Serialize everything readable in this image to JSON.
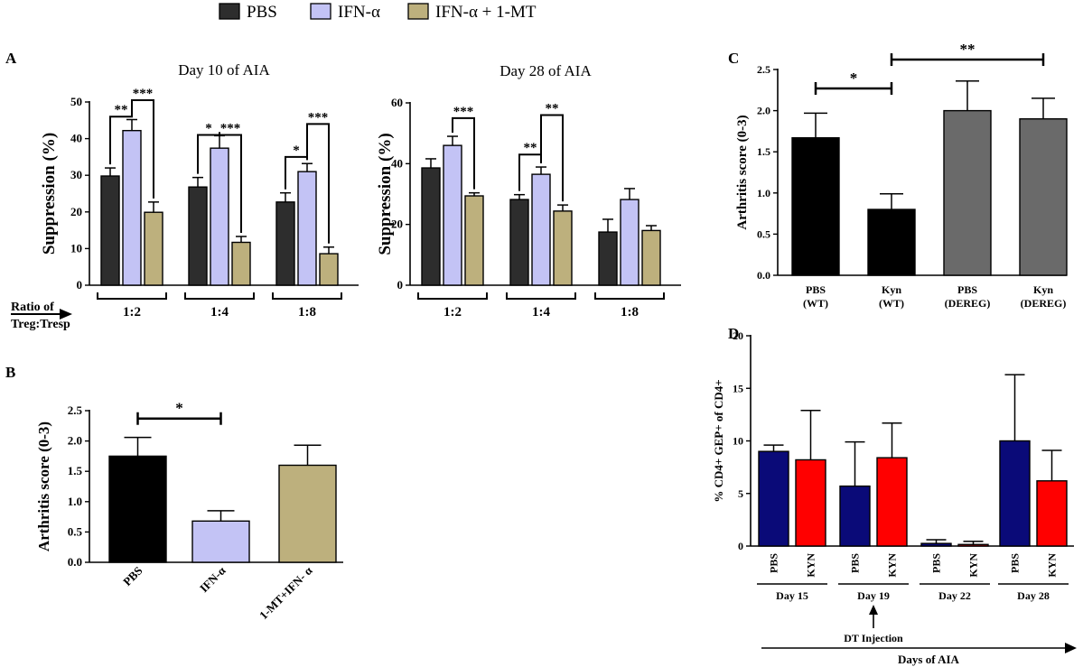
{
  "colors": {
    "pbs": "#2d2d2d",
    "ifn": "#c3c3f5",
    "ifn_1mt": "#bdb07d",
    "black": "#000000",
    "gray": "#6a6a6a",
    "navy": "#0a0a78",
    "red": "#ff0000"
  },
  "legend": {
    "items": [
      {
        "label": "PBS",
        "color": "pbs"
      },
      {
        "label": "IFN-α",
        "color": "ifn"
      },
      {
        "label": "IFN-α + 1-MT",
        "color": "ifn_1mt"
      }
    ]
  },
  "panels": {
    "A": "A",
    "B": "B",
    "C": "C",
    "D": "D"
  },
  "ratio_label": {
    "line1": "Ratio of",
    "line2": "Treg:Tresp"
  },
  "chart_data": [
    {
      "id": "A1",
      "type": "bar",
      "title": "Day 10 of AIA",
      "ylabel": "Suppression (%)",
      "xlabel": "",
      "ylim": [
        0,
        50
      ],
      "yticks": [
        0,
        10,
        20,
        30,
        40,
        50
      ],
      "groups": [
        "1:2",
        "1:4",
        "1:8"
      ],
      "series": [
        {
          "name": "PBS",
          "color": "pbs",
          "values": [
            29.8,
            26.8,
            22.7
          ],
          "errors": [
            2.2,
            2.6,
            2.5
          ]
        },
        {
          "name": "IFN-α",
          "color": "ifn",
          "values": [
            42.2,
            37.4,
            31.0
          ],
          "errors": [
            3.0,
            3.4,
            2.2
          ]
        },
        {
          "name": "IFN-α + 1-MT",
          "color": "ifn_1mt",
          "values": [
            19.9,
            11.7,
            8.6
          ],
          "errors": [
            2.8,
            1.6,
            1.8
          ]
        }
      ],
      "significance": [
        {
          "group": 0,
          "from": 0,
          "to": 1,
          "label": "**",
          "y": 46
        },
        {
          "group": 0,
          "from": 1,
          "to": 2,
          "label": "***",
          "y": 50.5
        },
        {
          "group": 1,
          "from": 0,
          "to": 1,
          "label": "*",
          "y": 41
        },
        {
          "group": 1,
          "from": 1,
          "to": 2,
          "label": "***",
          "y": 41
        },
        {
          "group": 2,
          "from": 0,
          "to": 1,
          "label": "*",
          "y": 35
        },
        {
          "group": 2,
          "from": 1,
          "to": 2,
          "label": "***",
          "y": 44
        }
      ]
    },
    {
      "id": "A2",
      "type": "bar",
      "title": "Day 28 of AIA",
      "ylabel": "Suppression (%)",
      "xlabel": "",
      "ylim": [
        0,
        60
      ],
      "yticks": [
        0,
        20,
        40,
        60
      ],
      "groups": [
        "1:2",
        "1:4",
        "1:8"
      ],
      "series": [
        {
          "name": "PBS",
          "color": "pbs",
          "values": [
            38.6,
            28.2,
            17.5
          ],
          "errors": [
            3.0,
            1.6,
            4.2
          ]
        },
        {
          "name": "IFN-α",
          "color": "ifn",
          "values": [
            46.0,
            36.5,
            28.2
          ],
          "errors": [
            3.0,
            2.4,
            3.6
          ]
        },
        {
          "name": "IFN-α + 1-MT",
          "color": "ifn_1mt",
          "values": [
            29.4,
            24.4,
            18.0
          ],
          "errors": [
            1.0,
            2.0,
            1.6
          ]
        }
      ],
      "significance": [
        {
          "group": 0,
          "from": 1,
          "to": 2,
          "label": "***",
          "y": 55
        },
        {
          "group": 1,
          "from": 0,
          "to": 1,
          "label": "**",
          "y": 43
        },
        {
          "group": 1,
          "from": 1,
          "to": 2,
          "label": "**",
          "y": 56
        }
      ]
    },
    {
      "id": "B",
      "type": "bar",
      "title": "",
      "ylabel": "Arthritis score (0-3)",
      "xlabel": "",
      "ylim": [
        0,
        2.5
      ],
      "yticks": [
        0.0,
        0.5,
        1.0,
        1.5,
        2.0,
        2.5
      ],
      "ytick_labels": [
        "0.0",
        "0.5",
        "1.0",
        "1.5",
        "2.0",
        "2.5"
      ],
      "categories": [
        "PBS",
        "IFN-α",
        "1-MT+IFN- α"
      ],
      "values": [
        1.75,
        0.68,
        1.6
      ],
      "errors": [
        0.31,
        0.17,
        0.33
      ],
      "colors": [
        "black",
        "ifn",
        "ifn_1mt"
      ],
      "significance": [
        {
          "from": 0,
          "to": 1,
          "label": "*",
          "y": 2.37
        }
      ]
    },
    {
      "id": "C",
      "type": "bar",
      "title": "",
      "ylabel": "Arthritis score (0-3)",
      "xlabel": "",
      "ylim": [
        0,
        2.5
      ],
      "yticks": [
        0.0,
        0.5,
        1.0,
        1.5,
        2.0,
        2.5
      ],
      "ytick_labels": [
        "0.0",
        "0.5",
        "1.0",
        "1.5",
        "2.0",
        "2.5"
      ],
      "categories": [
        "PBS\n(WT)",
        "Kyn\n(WT)",
        "PBS\n(DEREG)",
        "Kyn\n(DEREG)"
      ],
      "values": [
        1.67,
        0.8,
        2.0,
        1.9
      ],
      "errors": [
        0.3,
        0.19,
        0.36,
        0.25
      ],
      "colors": [
        "black",
        "black",
        "gray",
        "gray"
      ],
      "significance": [
        {
          "from": 0,
          "to": 1,
          "label": "*",
          "y": 2.27
        },
        {
          "from": 1,
          "to": 3,
          "label": "**",
          "y": 2.62
        }
      ]
    },
    {
      "id": "D",
      "type": "bar",
      "title": "",
      "ylabel": "% CD4+ GEP+ of CD4+",
      "xlabel": "Days of AIA",
      "ylim": [
        0,
        20
      ],
      "yticks": [
        0,
        5,
        10,
        15,
        20
      ],
      "groups": [
        "Day 15",
        "Day 19",
        "Day 22",
        "Day 28"
      ],
      "bar_labels": [
        "PBS",
        "KYN"
      ],
      "series": [
        {
          "name": "PBS",
          "color": "navy",
          "values": [
            9.0,
            5.7,
            0.25,
            10.0
          ],
          "errors": [
            0.6,
            4.2,
            0.35,
            6.3
          ]
        },
        {
          "name": "KYN",
          "color": "red",
          "values": [
            8.2,
            8.4,
            0.15,
            6.2
          ],
          "errors": [
            4.7,
            3.3,
            0.3,
            2.9
          ]
        }
      ],
      "annotation": "DT Injection"
    }
  ]
}
